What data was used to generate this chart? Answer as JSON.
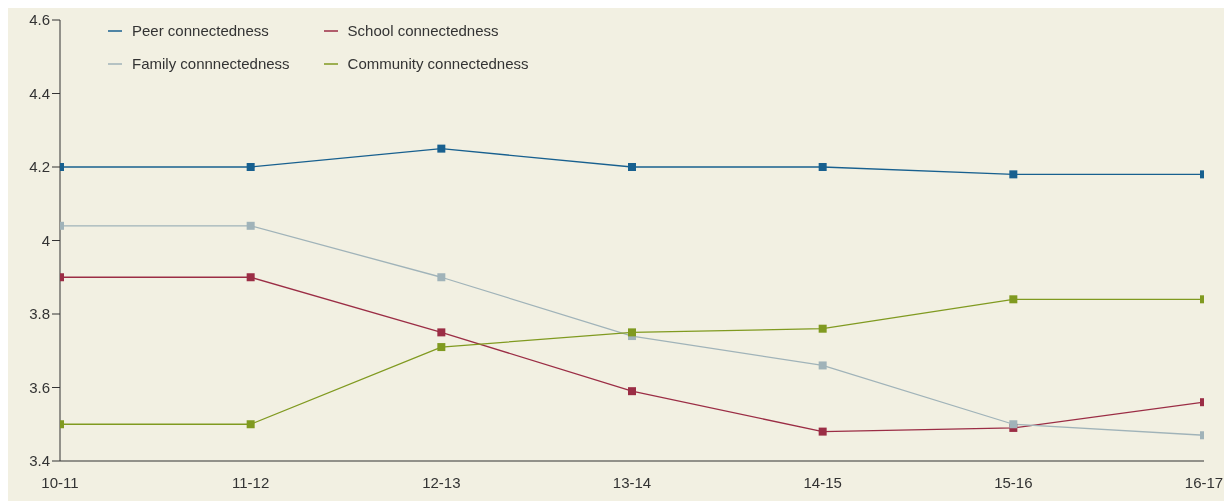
{
  "chart_data": {
    "type": "line",
    "categories": [
      "10-11",
      "11-12",
      "12-13",
      "13-14",
      "14-15",
      "15-16",
      "16-17"
    ],
    "series": [
      {
        "name": "Peer connectedness",
        "color": "#18608f",
        "values": [
          4.2,
          4.2,
          4.25,
          4.2,
          4.2,
          4.18,
          4.18
        ]
      },
      {
        "name": "School connectedness",
        "color": "#9b2d45",
        "values": [
          3.9,
          3.9,
          3.75,
          3.59,
          3.48,
          3.49,
          3.56
        ]
      },
      {
        "name": "Family connnectedness",
        "color": "#a0b3b9",
        "values": [
          4.04,
          4.04,
          3.9,
          3.74,
          3.66,
          3.5,
          3.47
        ]
      },
      {
        "name": "Community connectedness",
        "color": "#809a20",
        "values": [
          3.5,
          3.5,
          3.71,
          3.75,
          3.76,
          3.84,
          3.84
        ]
      }
    ],
    "ylim": [
      3.4,
      4.6
    ],
    "yticks": [
      3.4,
      3.6,
      3.8,
      4,
      4.2,
      4.4,
      4.6
    ],
    "grid": false,
    "legend": "top left",
    "marker": "square",
    "line_style": "solid"
  }
}
